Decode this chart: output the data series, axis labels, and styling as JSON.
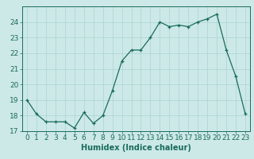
{
  "x": [
    0,
    1,
    2,
    3,
    4,
    5,
    6,
    7,
    8,
    9,
    10,
    11,
    12,
    13,
    14,
    15,
    16,
    17,
    18,
    19,
    20,
    21,
    22,
    23
  ],
  "y": [
    19.0,
    18.1,
    17.6,
    17.6,
    17.6,
    17.2,
    18.2,
    17.5,
    18.0,
    19.6,
    21.5,
    22.2,
    22.2,
    23.0,
    24.0,
    23.7,
    23.8,
    23.7,
    24.0,
    24.2,
    24.5,
    22.2,
    20.5,
    18.1
  ],
  "xlabel": "Humidex (Indice chaleur)",
  "ylim": [
    17,
    25
  ],
  "yticks": [
    17,
    18,
    19,
    20,
    21,
    22,
    23,
    24
  ],
  "xticks": [
    0,
    1,
    2,
    3,
    4,
    5,
    6,
    7,
    8,
    9,
    10,
    11,
    12,
    13,
    14,
    15,
    16,
    17,
    18,
    19,
    20,
    21,
    22,
    23
  ],
  "line_color": "#1a6b5a",
  "marker": "+",
  "marker_size": 3,
  "bg_color": "#cce9e7",
  "grid_color": "#aad4d1",
  "axes_color": "#1a6b5a",
  "label_fontsize": 7,
  "tick_fontsize": 6.5
}
